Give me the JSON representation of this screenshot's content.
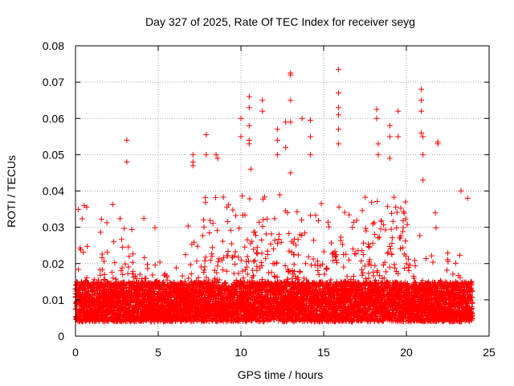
{
  "chart_data": {
    "type": "scatter",
    "title": "Day 327 of 2025, Rate Of TEC Index for receiver seyg",
    "xlabel": "GPS time / hours",
    "ylabel": "ROTI / TECUs",
    "xlim": [
      0,
      25
    ],
    "ylim": [
      0,
      0.08
    ],
    "xticks": [
      0,
      5,
      10,
      15,
      20,
      25
    ],
    "xtick_labels": [
      "0",
      "5",
      "10",
      "15",
      "20",
      "25"
    ],
    "yticks": [
      0,
      0.01,
      0.02,
      0.03,
      0.04,
      0.05,
      0.06,
      0.07,
      0.08
    ],
    "ytick_labels": [
      "0",
      "0.01",
      "0.02",
      "0.03",
      "0.04",
      "0.05",
      "0.06",
      "0.07",
      "0.08"
    ],
    "grid": true,
    "marker": "+",
    "series": [
      {
        "name": "ROTI",
        "color": "#ff0000",
        "data_extent_hours": [
          0,
          24
        ],
        "dense_band": [
          0.004,
          0.015
        ],
        "notable_points": [
          {
            "x": 3.1,
            "y": 0.054
          },
          {
            "x": 3.1,
            "y": 0.048
          },
          {
            "x": 7.1,
            "y": 0.05
          },
          {
            "x": 7.1,
            "y": 0.048
          },
          {
            "x": 7.1,
            "y": 0.047
          },
          {
            "x": 7.9,
            "y": 0.0555
          },
          {
            "x": 7.9,
            "y": 0.05
          },
          {
            "x": 8.5,
            "y": 0.05
          },
          {
            "x": 8.6,
            "y": 0.049
          },
          {
            "x": 10.0,
            "y": 0.06
          },
          {
            "x": 10.0,
            "y": 0.055
          },
          {
            "x": 10.5,
            "y": 0.066
          },
          {
            "x": 10.5,
            "y": 0.063
          },
          {
            "x": 10.5,
            "y": 0.058
          },
          {
            "x": 10.5,
            "y": 0.054
          },
          {
            "x": 10.5,
            "y": 0.053
          },
          {
            "x": 10.6,
            "y": 0.046
          },
          {
            "x": 11.3,
            "y": 0.065
          },
          {
            "x": 11.3,
            "y": 0.062
          },
          {
            "x": 12.2,
            "y": 0.057
          },
          {
            "x": 12.2,
            "y": 0.054
          },
          {
            "x": 12.2,
            "y": 0.05
          },
          {
            "x": 12.7,
            "y": 0.059
          },
          {
            "x": 12.7,
            "y": 0.052
          },
          {
            "x": 13.0,
            "y": 0.0725
          },
          {
            "x": 13.0,
            "y": 0.072
          },
          {
            "x": 13.0,
            "y": 0.065
          },
          {
            "x": 13.0,
            "y": 0.059
          },
          {
            "x": 13.0,
            "y": 0.045
          },
          {
            "x": 13.7,
            "y": 0.06
          },
          {
            "x": 14.2,
            "y": 0.0595
          },
          {
            "x": 14.2,
            "y": 0.055
          },
          {
            "x": 14.2,
            "y": 0.05
          },
          {
            "x": 15.9,
            "y": 0.0735
          },
          {
            "x": 15.9,
            "y": 0.067
          },
          {
            "x": 15.9,
            "y": 0.063
          },
          {
            "x": 15.9,
            "y": 0.061
          },
          {
            "x": 15.9,
            "y": 0.057
          },
          {
            "x": 15.9,
            "y": 0.053
          },
          {
            "x": 18.2,
            "y": 0.0625
          },
          {
            "x": 18.2,
            "y": 0.06
          },
          {
            "x": 18.3,
            "y": 0.053
          },
          {
            "x": 18.3,
            "y": 0.05
          },
          {
            "x": 19.0,
            "y": 0.058
          },
          {
            "x": 19.0,
            "y": 0.055
          },
          {
            "x": 19.0,
            "y": 0.049
          },
          {
            "x": 19.5,
            "y": 0.062
          },
          {
            "x": 19.5,
            "y": 0.055
          },
          {
            "x": 20.9,
            "y": 0.068
          },
          {
            "x": 20.9,
            "y": 0.065
          },
          {
            "x": 20.9,
            "y": 0.062
          },
          {
            "x": 20.9,
            "y": 0.056
          },
          {
            "x": 21.0,
            "y": 0.055
          },
          {
            "x": 21.0,
            "y": 0.05
          },
          {
            "x": 21.0,
            "y": 0.043
          },
          {
            "x": 21.9,
            "y": 0.0535
          },
          {
            "x": 21.9,
            "y": 0.053
          },
          {
            "x": 23.3,
            "y": 0.04
          },
          {
            "x": 23.7,
            "y": 0.038
          }
        ]
      }
    ]
  }
}
